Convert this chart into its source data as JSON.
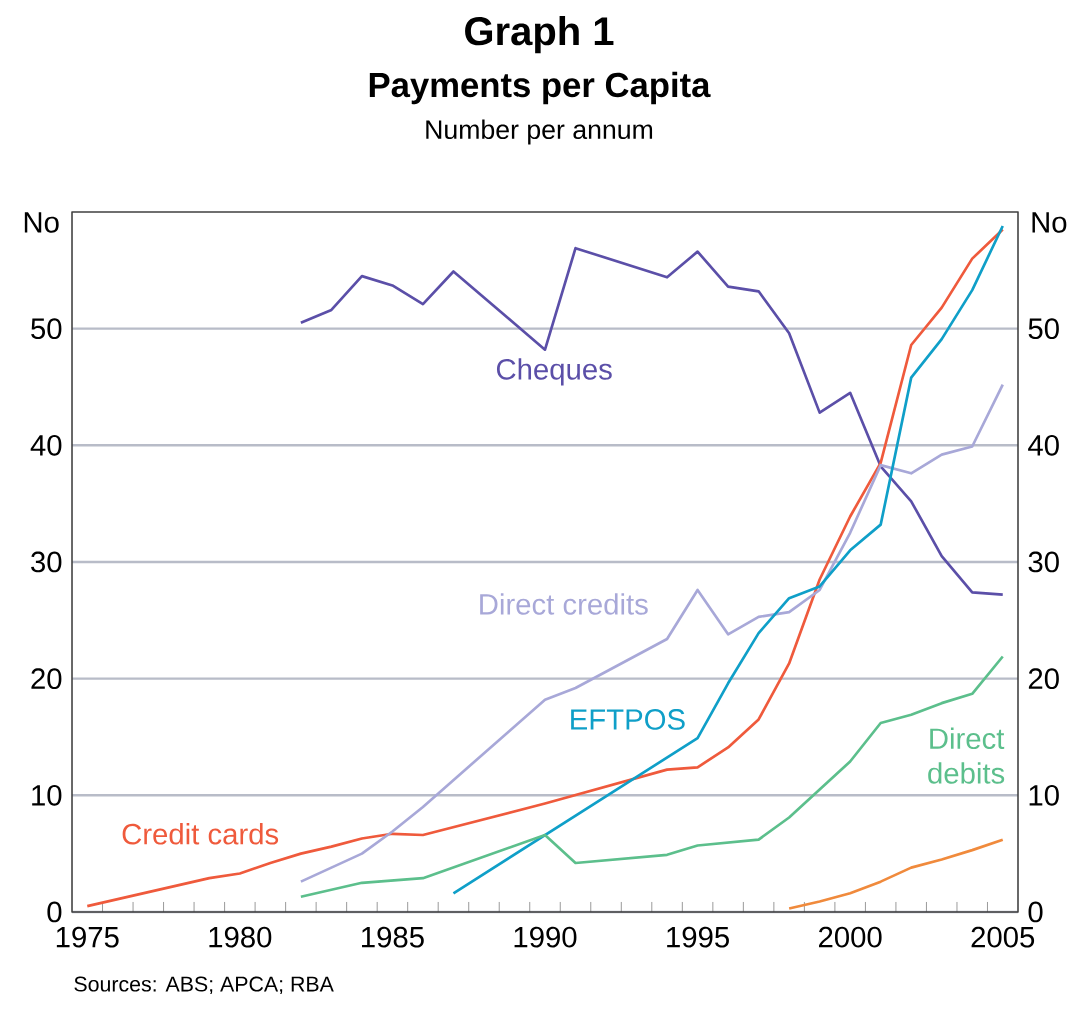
{
  "chart_data": {
    "type": "line",
    "title": "Graph 1",
    "subtitle": "Payments per Capita",
    "ylabel": "No",
    "y2label": "No",
    "annotations": [
      "Number per annum",
      "Sources: ABS; APCA; RBA"
    ],
    "xlim": [
      1974.5,
      2005.5
    ],
    "xticks": [
      1975,
      1980,
      1985,
      1990,
      1995,
      2000,
      2005,
      {
        "value": 1975.5,
        "label": null
      },
      {
        "value": 1976.5,
        "label": null
      },
      {
        "value": 1977.5,
        "label": null
      },
      {
        "value": 1978.5,
        "label": null
      },
      {
        "value": 1979.5,
        "label": null
      },
      {
        "value": 1980.5,
        "label": null
      },
      {
        "value": 1981.5,
        "label": null
      },
      {
        "value": 1982.5,
        "label": null
      },
      {
        "value": 1983.5,
        "label": null
      },
      {
        "value": 1984.5,
        "label": null
      },
      {
        "value": 1985.5,
        "label": null
      },
      {
        "value": 1986.5,
        "label": null
      },
      {
        "value": 1987.5,
        "label": null
      },
      {
        "value": 1988.5,
        "label": null
      },
      {
        "value": 1989.5,
        "label": null
      },
      {
        "value": 1990.5,
        "label": null
      },
      {
        "value": 1991.5,
        "label": null
      },
      {
        "value": 1992.5,
        "label": null
      },
      {
        "value": 1993.5,
        "label": null
      },
      {
        "value": 1994.5,
        "label": null
      },
      {
        "value": 1995.5,
        "label": null
      },
      {
        "value": 1996.5,
        "label": null
      },
      {
        "value": 1997.5,
        "label": null
      },
      {
        "value": 1998.5,
        "label": null
      },
      {
        "value": 1999.5,
        "label": null
      },
      {
        "value": 2000.5,
        "label": null
      },
      {
        "value": 2001.5,
        "label": null
      },
      {
        "value": 2002.5,
        "label": null
      },
      {
        "value": 2003.5,
        "label": null
      },
      {
        "value": 2004.5,
        "label": null
      }
    ],
    "ylim": [
      0,
      60
    ],
    "yticks": [
      0,
      10,
      20,
      30,
      40,
      50
    ],
    "y2lim": [
      0,
      60
    ],
    "y2ticks": [
      0,
      10,
      20,
      30,
      40,
      50
    ],
    "grid": "y",
    "legend": false,
    "marker": "none",
    "line_style": "solid",
    "series": [
      {
        "name": "Cheques",
        "color": "#5b4fa8",
        "x": [
          1982,
          1983,
          1984,
          1985,
          1986,
          1987,
          1990,
          1991,
          1994,
          1995,
          1996,
          1997,
          1998,
          1999,
          2000,
          2001,
          2002,
          2003,
          2004,
          2005
        ],
        "values": [
          50.5,
          51.6,
          54.5,
          53.7,
          52.1,
          54.9,
          48.2,
          56.9,
          54.4,
          56.6,
          53.6,
          53.2,
          49.6,
          42.8,
          44.5,
          38.2,
          35.2,
          30.5,
          27.4,
          27.2
        ]
      },
      {
        "name": "Credit cards",
        "color": "#ef5a3c",
        "x": [
          1975,
          1976,
          1977,
          1978,
          1979,
          1980,
          1981,
          1982,
          1983,
          1984,
          1985,
          1986,
          1990,
          1994,
          1995,
          1996,
          1997,
          1998,
          1999,
          2000,
          2001,
          2002,
          2003,
          2004,
          2005
        ],
        "values": [
          0.5,
          1.1,
          1.7,
          2.3,
          2.9,
          3.3,
          4.2,
          5.0,
          5.6,
          6.3,
          6.7,
          6.6,
          9.3,
          12.2,
          12.4,
          14.1,
          16.5,
          21.3,
          28.5,
          33.9,
          38.5,
          48.6,
          51.8,
          56.0,
          58.5
        ]
      },
      {
        "name": "Direct credits",
        "color": "#a8a8d8",
        "x": [
          1982,
          1983,
          1984,
          1985,
          1986,
          1990,
          1991,
          1994,
          1995,
          1996,
          1997,
          1998,
          1999,
          2000,
          2001,
          2002,
          2003,
          2004,
          2005
        ],
        "values": [
          2.6,
          3.8,
          5.0,
          6.9,
          9.0,
          18.2,
          19.2,
          23.4,
          27.6,
          23.8,
          25.3,
          25.7,
          27.6,
          32.5,
          38.3,
          37.6,
          39.2,
          39.9,
          45.2
        ]
      },
      {
        "name": "EFTPOS",
        "color": "#0f9fc8",
        "x": [
          1987,
          1995,
          1996,
          1997,
          1998,
          1999,
          2000,
          2001,
          2002,
          2003,
          2004,
          2005
        ],
        "values": [
          1.6,
          14.9,
          19.6,
          23.9,
          26.9,
          27.9,
          31.0,
          33.2,
          45.8,
          49.1,
          53.3,
          58.8
        ]
      },
      {
        "name": "Direct debits",
        "color": "#5cbf8c",
        "x": [
          1982,
          1984,
          1986,
          1990,
          1991,
          1994,
          1995,
          1997,
          1998,
          1999,
          2000,
          2001,
          2002,
          2003,
          2004,
          2005
        ],
        "values": [
          1.3,
          2.5,
          2.9,
          6.6,
          4.2,
          4.9,
          5.7,
          6.2,
          8.1,
          10.5,
          12.9,
          16.2,
          16.9,
          17.9,
          18.7,
          21.9
        ]
      },
      {
        "color": "#f08a3c",
        "x": [
          1998,
          1999,
          2000,
          2001,
          2002,
          2003,
          2004,
          2005
        ],
        "values": [
          0.3,
          0.9,
          1.6,
          2.6,
          3.8,
          4.5,
          5.3,
          6.2
        ]
      }
    ]
  }
}
